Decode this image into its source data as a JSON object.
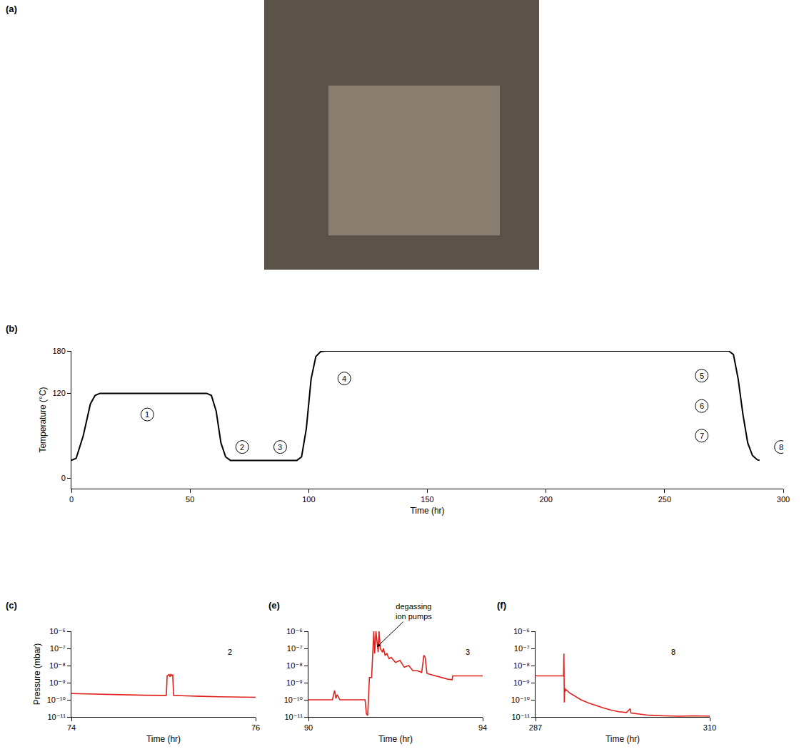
{
  "chart_data": [
    {
      "type": "image",
      "title": "(a)"
    },
    {
      "type": "line",
      "title": "(b)",
      "x_label": "Time (hr)",
      "y_label": "Temperature (°C)",
      "x": [
        0,
        2,
        5,
        8,
        10,
        12,
        57,
        59,
        61,
        63,
        65,
        67,
        95,
        97,
        99,
        101,
        103,
        105,
        107,
        277,
        279,
        281,
        283,
        285,
        287,
        289,
        290
      ],
      "values": [
        25,
        28,
        60,
        105,
        117,
        120,
        120,
        117,
        95,
        50,
        30,
        25,
        25,
        30,
        70,
        140,
        172,
        179,
        180,
        180,
        175,
        140,
        90,
        50,
        32,
        26,
        25
      ],
      "color": "#000000",
      "grid": false,
      "xlim": [
        0,
        300
      ],
      "xticks": [
        0,
        50,
        100,
        150,
        200,
        250,
        300
      ],
      "ylim": [
        -15,
        180
      ],
      "yticks": [
        0,
        120,
        180
      ],
      "annotations": [
        {
          "text": "1",
          "x": 32,
          "y": 90,
          "marker": "circle"
        },
        {
          "text": "2",
          "x": 72,
          "y": 44,
          "marker": "circle"
        },
        {
          "text": "3",
          "x": 88,
          "y": 44,
          "marker": "circle"
        },
        {
          "text": "4",
          "x": 115,
          "y": 141,
          "marker": "circle"
        },
        {
          "text": "5",
          "x": 265.6,
          "y": 145,
          "marker": "circle"
        },
        {
          "text": "6",
          "x": 265.6,
          "y": 102,
          "marker": "circle"
        },
        {
          "text": "7",
          "x": 265.6,
          "y": 60,
          "marker": "circle"
        },
        {
          "text": "8",
          "x": 299,
          "y": 44,
          "marker": "circle"
        }
      ]
    },
    {
      "type": "line",
      "title": "(c)",
      "log": "y",
      "x_label": "Time (hr)",
      "y_label": "Pressure (mbar)",
      "x": [
        74,
        74.2,
        74.4,
        74.6,
        74.8,
        75.0,
        75.03,
        75.04,
        75.06,
        75.07,
        75.08,
        75.09,
        75.1,
        75.11,
        75.2,
        75.4,
        75.6,
        75.8,
        76
      ],
      "values": [
        2.3e-10,
        2.15e-10,
        2.05e-10,
        1.95e-10,
        1.85e-10,
        1.8e-10,
        1.8e-10,
        2.5e-09,
        3e-09,
        2.2e-09,
        3.2e-09,
        2.6e-09,
        2.8e-09,
        1.8e-10,
        1.7e-10,
        1.6e-10,
        1.5e-10,
        1.45e-10,
        1.4e-10
      ],
      "color": "#e0201b",
      "grid": false,
      "xlim": [
        74,
        76
      ],
      "xticks": [
        74,
        76
      ],
      "ylim": [
        1e-11,
        1e-06
      ],
      "yticks": [
        {
          "value": 1e-11,
          "label": "10⁻¹¹"
        },
        {
          "value": 1e-10,
          "label": "10⁻¹⁰"
        },
        {
          "value": 1e-09,
          "label": "10⁻⁹"
        },
        {
          "value": 1e-08,
          "label": "10⁻⁸"
        },
        {
          "value": 1e-07,
          "label": "10⁻⁷"
        },
        {
          "value": 1e-06,
          "label": "10⁻⁶"
        }
      ],
      "annotations": [
        {
          "text": "2",
          "x": 75.72,
          "y": 6e-08,
          "marker": "circle"
        }
      ]
    },
    {
      "type": "line",
      "title": "(e)",
      "log": "y",
      "x_label": "Time (hr)",
      "x": [
        90,
        90.55,
        90.6,
        90.63,
        90.66,
        90.72,
        91.2,
        91.3,
        91.33,
        91.36,
        91.4,
        91.45,
        91.5,
        91.52,
        91.55,
        91.6,
        91.62,
        91.65,
        91.7,
        91.72,
        91.76,
        91.8,
        91.85,
        91.9,
        92.0,
        92.1,
        92.2,
        92.3,
        92.4,
        92.5,
        92.6,
        92.65,
        92.68,
        92.72,
        92.8,
        93.0,
        93.2,
        93.3,
        93.31,
        94
      ],
      "values": [
        1e-10,
        1e-10,
        3.5e-10,
        1.2e-10,
        2e-10,
        1e-10,
        1e-10,
        1e-10,
        1.5e-11,
        1.2e-11,
        2e-09,
        2e-09,
        1e-06,
        5e-08,
        1e-06,
        6e-08,
        1e-06,
        1e-07,
        6e-08,
        1e-07,
        4e-08,
        5e-08,
        2.5e-08,
        3e-08,
        1.5e-08,
        2e-08,
        8e-09,
        1e-08,
        5e-09,
        5e-09,
        4e-09,
        4e-08,
        3e-08,
        3.5e-09,
        3e-09,
        2.2e-09,
        1.6e-09,
        1.5e-09,
        2.5e-09,
        2.5e-09
      ],
      "color": "#e0201b",
      "grid": false,
      "xlim": [
        90,
        94
      ],
      "xticks": [
        90,
        94
      ],
      "ylim": [
        1e-11,
        1e-06
      ],
      "yticks": [
        {
          "value": 1e-11,
          "label": "10⁻¹¹"
        },
        {
          "value": 1e-10,
          "label": "10⁻¹⁰"
        },
        {
          "value": 1e-09,
          "label": "10⁻⁹"
        },
        {
          "value": 1e-08,
          "label": "10⁻⁸"
        },
        {
          "value": 1e-07,
          "label": "10⁻⁷"
        },
        {
          "value": 1e-06,
          "label": "10⁻⁶"
        }
      ],
      "annotations": [
        {
          "text": "degassing ion pumps",
          "x": 91.57,
          "y": 1.2e-07,
          "marker": "arrow"
        },
        {
          "text": "3",
          "x": 93.66,
          "y": 6e-08,
          "marker": "circle"
        }
      ]
    },
    {
      "type": "line",
      "title": "(f)",
      "log": "y",
      "x_label": "Time (hr)",
      "x": [
        287,
        290.7,
        290.75,
        290.8,
        290.85,
        290.9,
        291.0,
        291.5,
        292,
        292.5,
        293,
        294,
        295,
        296,
        297,
        298,
        299,
        299.5,
        299.6,
        300,
        301,
        302,
        304,
        306,
        308,
        310
      ],
      "values": [
        2.5e-09,
        2.5e-09,
        5e-08,
        7e-11,
        5e-10,
        3e-10,
        4e-10,
        2.5e-10,
        1.8e-10,
        1.3e-10,
        1e-10,
        6.5e-11,
        4.5e-11,
        3.3e-11,
        2.5e-11,
        2e-11,
        1.8e-11,
        3e-11,
        1.7e-11,
        1.6e-11,
        1.4e-11,
        1.25e-11,
        1.15e-11,
        1.1e-11,
        1.15e-11,
        1.1e-11
      ],
      "color": "#e0201b",
      "grid": false,
      "xlim": [
        287,
        310
      ],
      "xticks": [
        287,
        310
      ],
      "ylim": [
        1e-11,
        1e-06
      ],
      "yticks": [
        {
          "value": 1e-11,
          "label": "10⁻¹¹"
        },
        {
          "value": 1e-10,
          "label": "10⁻¹⁰"
        },
        {
          "value": 1e-09,
          "label": "10⁻⁹"
        },
        {
          "value": 1e-08,
          "label": "10⁻⁸"
        },
        {
          "value": 1e-07,
          "label": "10⁻⁷"
        },
        {
          "value": 1e-06,
          "label": "10⁻⁶"
        }
      ],
      "annotations": [
        {
          "text": "8",
          "x": 305.2,
          "y": 6e-08,
          "marker": "circle"
        }
      ]
    }
  ]
}
